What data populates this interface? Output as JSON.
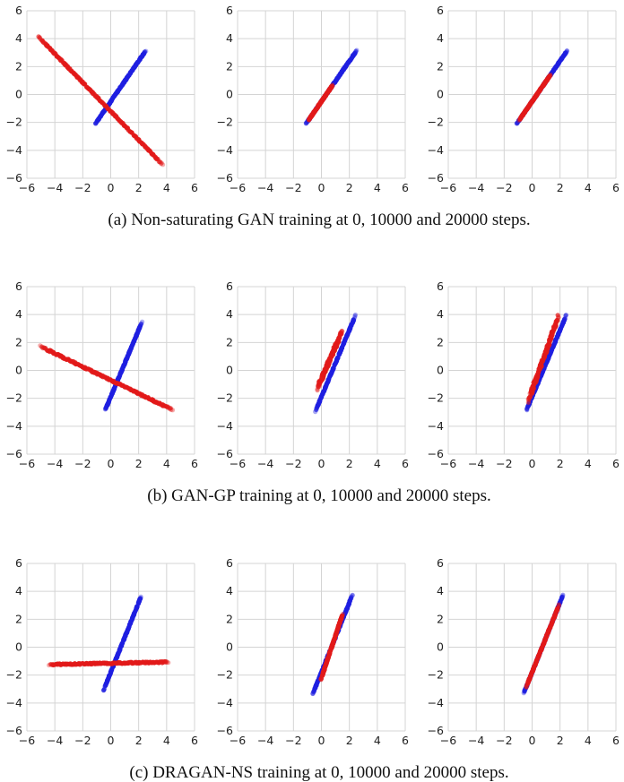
{
  "figure": {
    "caption_a": "(a) Non-saturating GAN training at 0, 10000 and 20000 steps.",
    "caption_b": "(b) GAN-GP training at 0, 10000 and 20000 steps.",
    "caption_c": "(c) DRAGAN-NS training at 0, 10000 and 20000 steps."
  },
  "colors": {
    "real": "#1f1fe0",
    "generated": "#e21a1a",
    "grid": "#d4d4d4"
  },
  "chart_data": [
    {
      "type": "scatter",
      "row": "a",
      "step": 0,
      "xlim": [
        -6,
        6
      ],
      "ylim": [
        -6,
        6
      ],
      "xticks": [
        -6,
        -4,
        -2,
        0,
        2,
        4,
        6
      ],
      "yticks": [
        -6,
        -4,
        -2,
        0,
        2,
        4,
        6
      ],
      "grid": true,
      "series": [
        {
          "color": "blue",
          "x_range": [
            -1.1,
            2.5
          ],
          "slope": 1.45,
          "intercept": -0.5,
          "offset": 0,
          "spread": 0.05
        },
        {
          "color": "red",
          "x_range": [
            -5.2,
            3.7
          ],
          "slope": -1.03,
          "intercept": -1.2,
          "offset": 0,
          "spread": 0.05
        }
      ]
    },
    {
      "type": "scatter",
      "row": "a",
      "step": 10000,
      "xlim": [
        -6,
        6
      ],
      "ylim": [
        -6,
        6
      ],
      "xticks": [
        -6,
        -4,
        -2,
        0,
        2,
        4,
        6
      ],
      "yticks": [
        -6,
        -4,
        -2,
        0,
        2,
        4,
        6
      ],
      "grid": true,
      "series": [
        {
          "color": "blue",
          "x_range": [
            -1.1,
            2.5
          ],
          "slope": 1.45,
          "intercept": -0.5,
          "offset": 0,
          "spread": 0.05
        },
        {
          "color": "red",
          "x_range": [
            -0.9,
            0.8
          ],
          "slope": 1.45,
          "intercept": -0.5,
          "offset": 0,
          "spread": 0.05
        }
      ]
    },
    {
      "type": "scatter",
      "row": "a",
      "step": 20000,
      "xlim": [
        -6,
        6
      ],
      "ylim": [
        -6,
        6
      ],
      "xticks": [
        -6,
        -4,
        -2,
        0,
        2,
        4,
        6
      ],
      "yticks": [
        -6,
        -4,
        -2,
        0,
        2,
        4,
        6
      ],
      "grid": true,
      "series": [
        {
          "color": "blue",
          "x_range": [
            -1.1,
            2.5
          ],
          "slope": 1.45,
          "intercept": -0.5,
          "offset": 0,
          "spread": 0.05
        },
        {
          "color": "red",
          "x_range": [
            -0.9,
            1.3
          ],
          "slope": 1.45,
          "intercept": -0.5,
          "offset": 0,
          "spread": 0.05
        }
      ]
    },
    {
      "type": "scatter",
      "row": "b",
      "step": 0,
      "xlim": [
        -6,
        6
      ],
      "ylim": [
        -6,
        6
      ],
      "xticks": [
        -6,
        -4,
        -2,
        0,
        2,
        4,
        6
      ],
      "yticks": [
        -6,
        -4,
        -2,
        0,
        2,
        4,
        6
      ],
      "grid": true,
      "series": [
        {
          "color": "blue",
          "x_range": [
            -0.4,
            2.2
          ],
          "slope": 2.4,
          "intercept": -1.9,
          "offset": 0,
          "spread": 0.06
        },
        {
          "color": "red",
          "x_range": [
            -5.0,
            4.4
          ],
          "slope": -0.48,
          "intercept": -0.7,
          "offset": 0,
          "spread": 0.06
        }
      ]
    },
    {
      "type": "scatter",
      "row": "b",
      "step": 10000,
      "xlim": [
        -6,
        6
      ],
      "ylim": [
        -6,
        6
      ],
      "xticks": [
        -6,
        -4,
        -2,
        0,
        2,
        4,
        6
      ],
      "yticks": [
        -6,
        -4,
        -2,
        0,
        2,
        4,
        6
      ],
      "grid": true,
      "series": [
        {
          "color": "blue",
          "x_range": [
            -0.4,
            2.4
          ],
          "slope": 2.4,
          "intercept": -1.9,
          "offset": 0,
          "spread": 0.06
        },
        {
          "color": "red",
          "x_range": [
            -0.2,
            1.4
          ],
          "slope": 2.3,
          "intercept": -0.6,
          "offset": 0.25,
          "spread": 0.12
        }
      ]
    },
    {
      "type": "scatter",
      "row": "b",
      "step": 20000,
      "xlim": [
        -6,
        6
      ],
      "ylim": [
        -6,
        6
      ],
      "xticks": [
        -6,
        -4,
        -2,
        0,
        2,
        4,
        6
      ],
      "yticks": [
        -6,
        -4,
        -2,
        0,
        2,
        4,
        6
      ],
      "grid": true,
      "series": [
        {
          "color": "blue",
          "x_range": [
            -0.4,
            2.4
          ],
          "slope": 2.4,
          "intercept": -1.9,
          "offset": 0,
          "spread": 0.06
        },
        {
          "color": "red",
          "x_range": [
            -0.2,
            1.8
          ],
          "slope": 2.8,
          "intercept": -1.4,
          "offset": 0.25,
          "spread": 0.14
        }
      ]
    },
    {
      "type": "scatter",
      "row": "c",
      "step": 0,
      "xlim": [
        -6,
        6
      ],
      "ylim": [
        -6,
        6
      ],
      "xticks": [
        -6,
        -4,
        -2,
        0,
        2,
        4,
        6
      ],
      "yticks": [
        -6,
        -4,
        -2,
        0,
        2,
        4,
        6
      ],
      "grid": true,
      "series": [
        {
          "color": "blue",
          "x_range": [
            -0.5,
            2.2
          ],
          "slope": 2.5,
          "intercept": -1.8,
          "offset": 0,
          "spread": 0.06
        },
        {
          "color": "red",
          "x_range": [
            -4.4,
            4.1
          ],
          "slope": 0.02,
          "intercept": -1.15,
          "offset": 0,
          "spread": 0.05
        }
      ]
    },
    {
      "type": "scatter",
      "row": "c",
      "step": 10000,
      "xlim": [
        -6,
        6
      ],
      "ylim": [
        -6,
        6
      ],
      "xticks": [
        -6,
        -4,
        -2,
        0,
        2,
        4,
        6
      ],
      "yticks": [
        -6,
        -4,
        -2,
        0,
        2,
        4,
        6
      ],
      "grid": true,
      "series": [
        {
          "color": "blue",
          "x_range": [
            -0.6,
            2.2
          ],
          "slope": 2.5,
          "intercept": -1.8,
          "offset": 0,
          "spread": 0.06
        },
        {
          "color": "red",
          "x_range": [
            0.0,
            1.5
          ],
          "slope": 3.0,
          "intercept": -2.2,
          "offset": 0,
          "spread": 0.08
        }
      ]
    },
    {
      "type": "scatter",
      "row": "c",
      "step": 20000,
      "xlim": [
        -6,
        6
      ],
      "ylim": [
        -6,
        6
      ],
      "xticks": [
        -6,
        -4,
        -2,
        0,
        2,
        4,
        6
      ],
      "yticks": [
        -6,
        -4,
        -2,
        0,
        2,
        4,
        6
      ],
      "grid": true,
      "series": [
        {
          "color": "blue",
          "x_range": [
            -0.6,
            2.2
          ],
          "slope": 2.5,
          "intercept": -1.8,
          "offset": 0,
          "spread": 0.06
        },
        {
          "color": "red",
          "x_range": [
            -0.4,
            1.9
          ],
          "slope": 2.5,
          "intercept": -1.8,
          "offset": 0,
          "spread": 0.07
        }
      ]
    }
  ]
}
